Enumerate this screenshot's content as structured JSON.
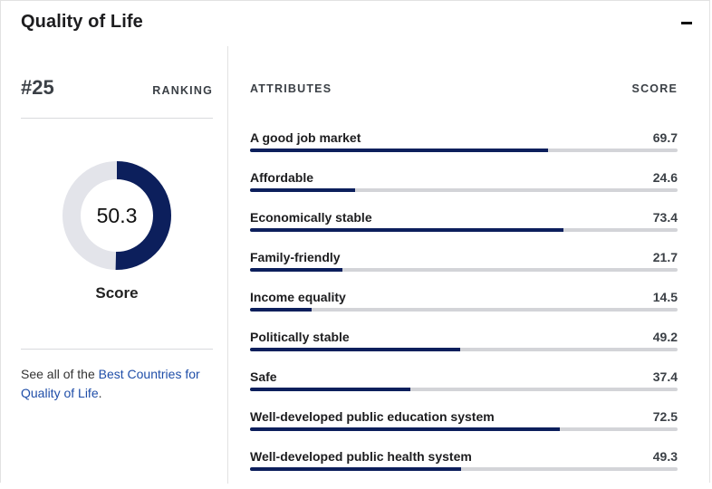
{
  "card": {
    "title": "Quality of Life",
    "collapse_symbol": "−"
  },
  "ranking": {
    "value": "#25",
    "label": "RANKING"
  },
  "score": {
    "value": 50.3,
    "display": "50.3",
    "max": 100,
    "caption": "Score",
    "ring_color": "#0c1f5c",
    "track_color": "#e3e4ea"
  },
  "see_all": {
    "prefix": "See all of the ",
    "link_text": "Best Countries for Quality of Life",
    "suffix": "."
  },
  "attributes_table": {
    "header_attr": "ATTRIBUTES",
    "header_score": "SCORE",
    "bar_color": "#0c1f5c",
    "max": 100,
    "rows": [
      {
        "label": "A good job market",
        "score": 69.7,
        "score_text": "69.7"
      },
      {
        "label": "Affordable",
        "score": 24.6,
        "score_text": "24.6"
      },
      {
        "label": "Economically stable",
        "score": 73.4,
        "score_text": "73.4"
      },
      {
        "label": "Family-friendly",
        "score": 21.7,
        "score_text": "21.7"
      },
      {
        "label": "Income equality",
        "score": 14.5,
        "score_text": "14.5"
      },
      {
        "label": "Politically stable",
        "score": 49.2,
        "score_text": "49.2"
      },
      {
        "label": "Safe",
        "score": 37.4,
        "score_text": "37.4"
      },
      {
        "label": "Well-developed public education system",
        "score": 72.5,
        "score_text": "72.5"
      },
      {
        "label": "Well-developed public health system",
        "score": 49.3,
        "score_text": "49.3"
      }
    ]
  }
}
